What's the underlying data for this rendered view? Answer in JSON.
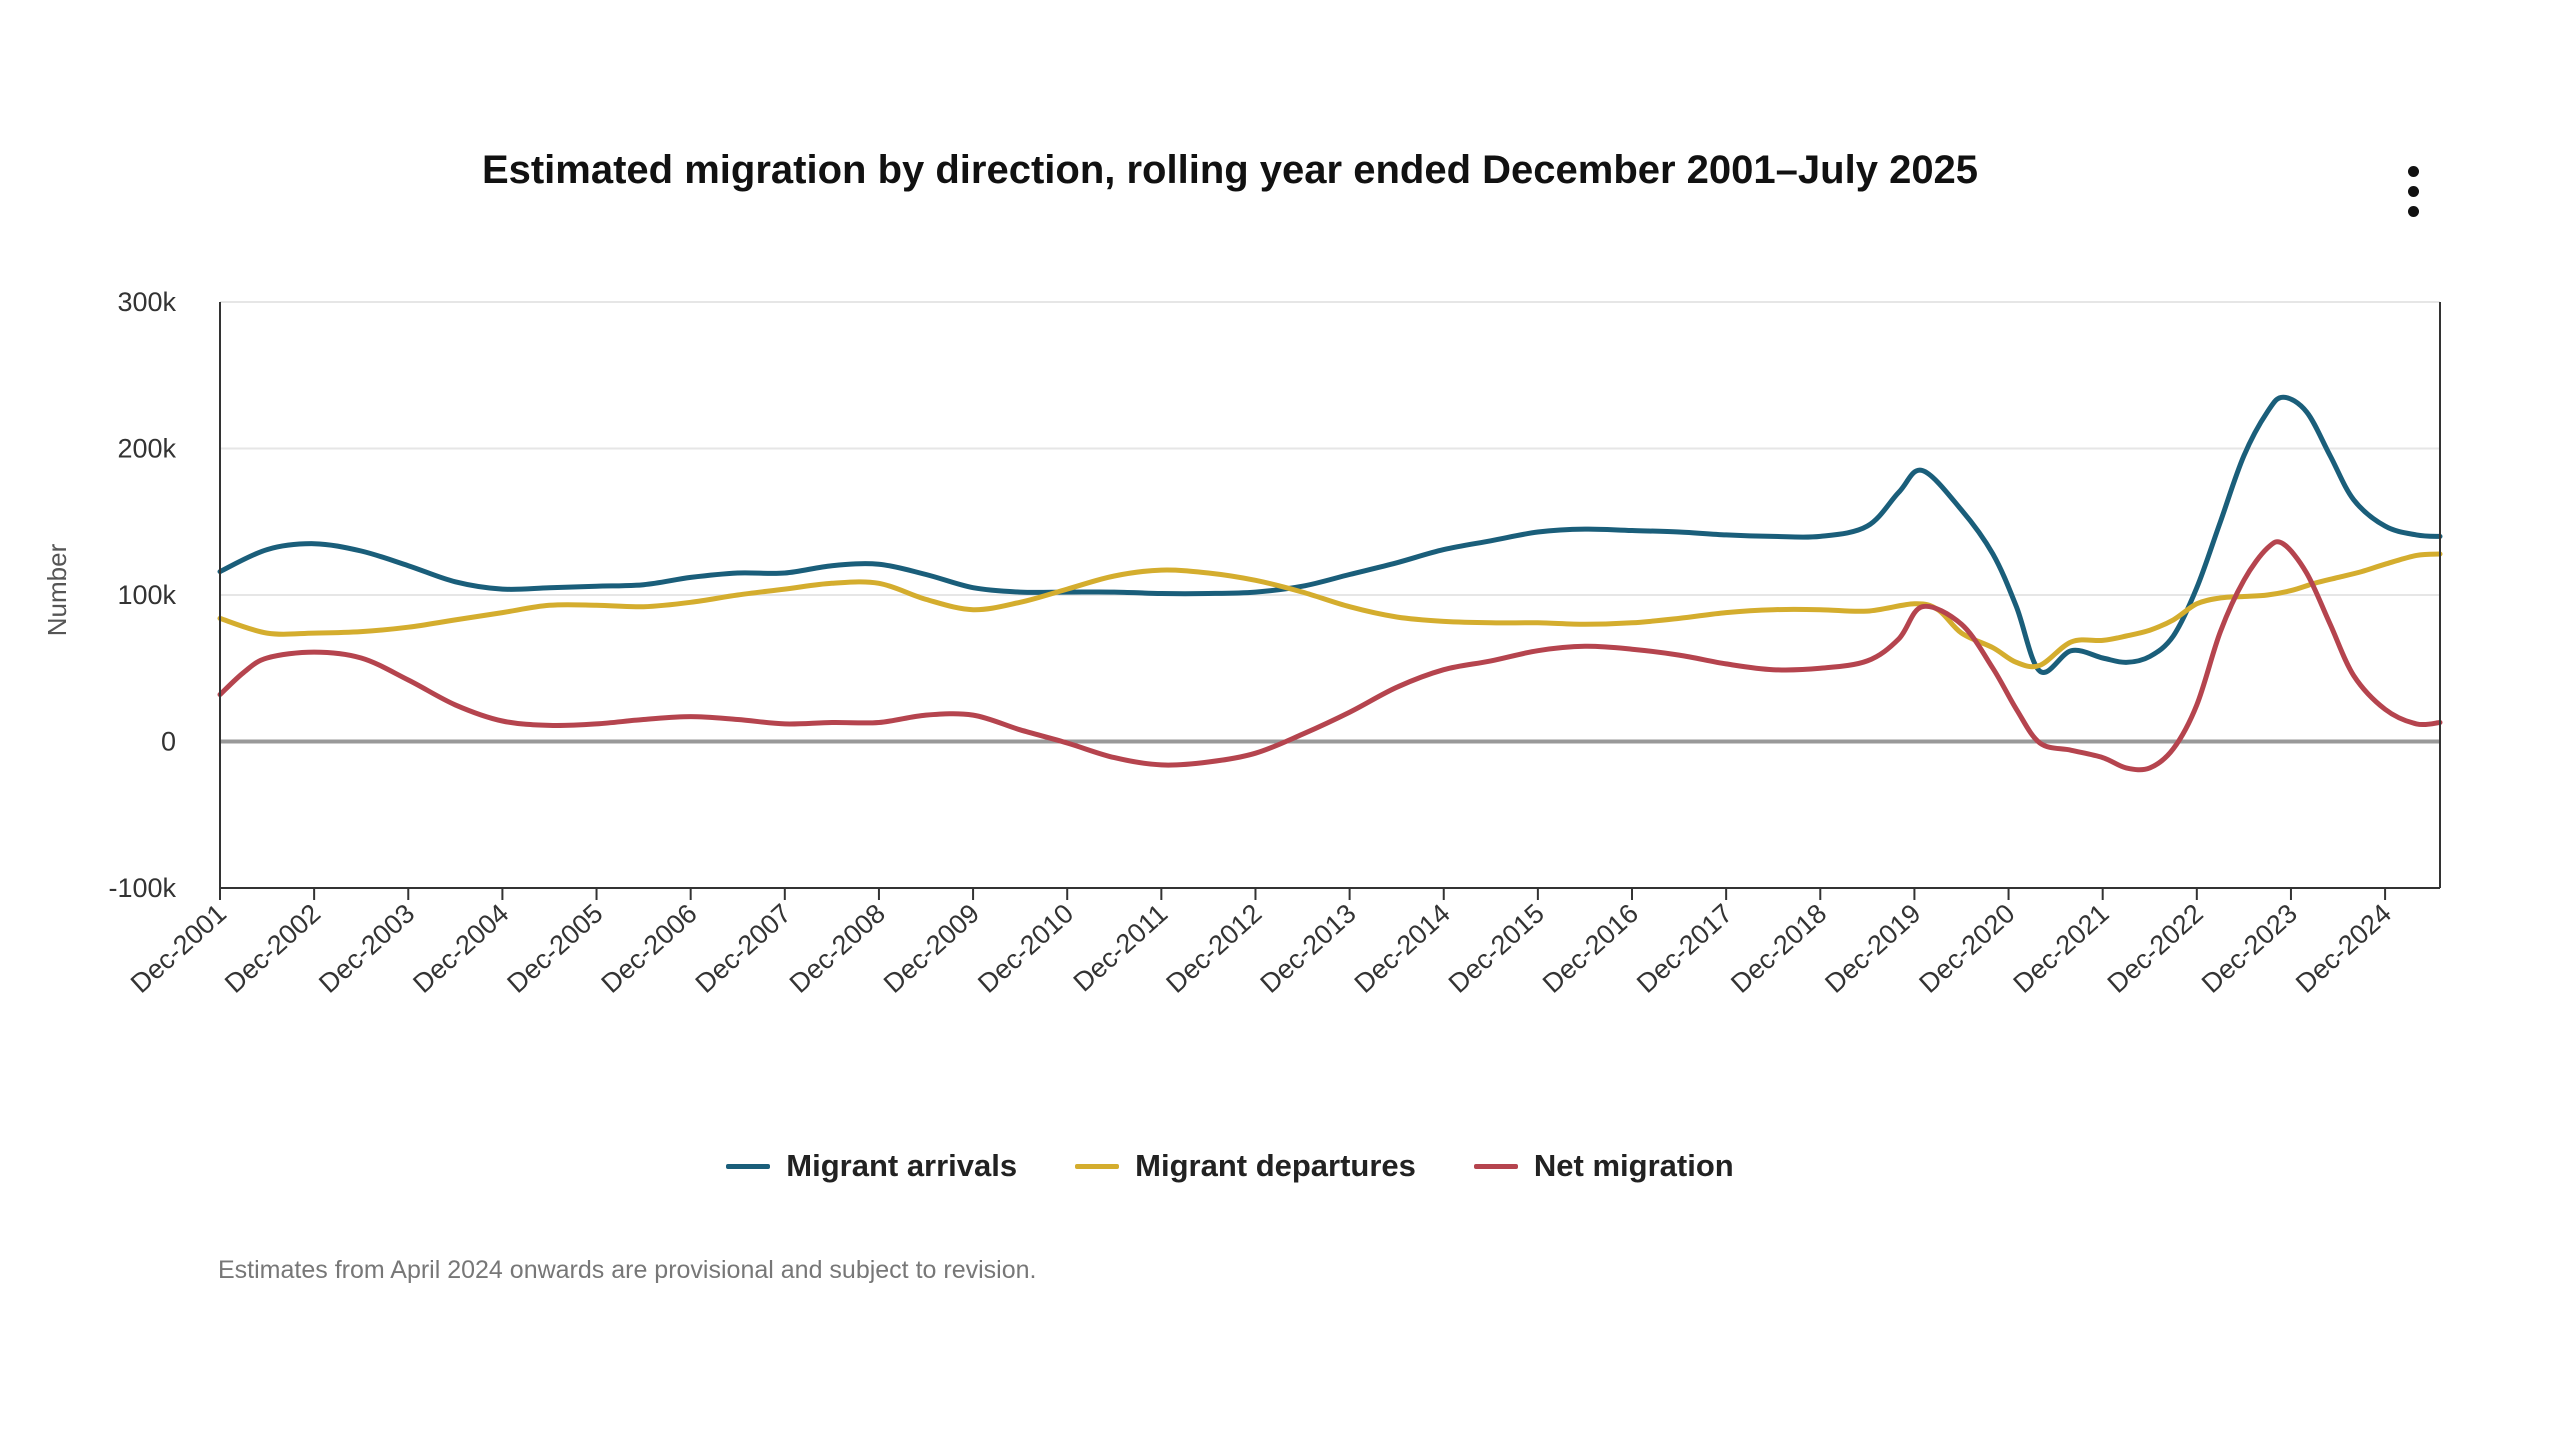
{
  "title": "Estimated migration by direction, rolling year ended December 2001–July 2025",
  "note": "Estimates from April 2024 onwards are provisional and subject to revision.",
  "menu": {
    "icon": "more-vertical-icon"
  },
  "colors": {
    "arrivals": "#1a5e7a",
    "departures": "#d4ad2e",
    "net": "#b5444e",
    "zero_line": "#999999",
    "grid": "#e6e6e6",
    "axis": "#333333"
  },
  "chart_data": {
    "type": "line",
    "title": "Estimated migration by direction, rolling year ended December 2001–July 2025",
    "xlabel": "",
    "ylabel": "Number",
    "ylim": [
      -100000,
      300000
    ],
    "y_ticks": [
      {
        "value": 300000,
        "label": "300k"
      },
      {
        "value": 200000,
        "label": "200k"
      },
      {
        "value": 100000,
        "label": "100k"
      },
      {
        "value": 0,
        "label": "0"
      },
      {
        "value": -100000,
        "label": "-100k"
      }
    ],
    "x_ticks": [
      "Dec-2001",
      "Dec-2002",
      "Dec-2003",
      "Dec-2004",
      "Dec-2005",
      "Dec-2006",
      "Dec-2007",
      "Dec-2008",
      "Dec-2009",
      "Dec-2010",
      "Dec-2011",
      "Dec-2012",
      "Dec-2013",
      "Dec-2014",
      "Dec-2015",
      "Dec-2016",
      "Dec-2017",
      "Dec-2018",
      "Dec-2019",
      "Dec-2020",
      "Dec-2021",
      "Dec-2022",
      "Dec-2023",
      "Dec-2024"
    ],
    "x_range": [
      "2001-12",
      "2025-07"
    ],
    "grid": true,
    "legend": "bottom",
    "series": [
      {
        "name": "Migrant arrivals",
        "points": [
          [
            "2001-12",
            116000
          ],
          [
            "2002-06",
            131000
          ],
          [
            "2002-12",
            135000
          ],
          [
            "2003-06",
            130000
          ],
          [
            "2003-12",
            120000
          ],
          [
            "2004-06",
            109000
          ],
          [
            "2004-12",
            104000
          ],
          [
            "2005-06",
            105000
          ],
          [
            "2005-12",
            106000
          ],
          [
            "2006-06",
            107000
          ],
          [
            "2006-12",
            112000
          ],
          [
            "2007-06",
            115000
          ],
          [
            "2007-12",
            115000
          ],
          [
            "2008-06",
            120000
          ],
          [
            "2008-12",
            121000
          ],
          [
            "2009-06",
            114000
          ],
          [
            "2009-12",
            105000
          ],
          [
            "2010-06",
            102000
          ],
          [
            "2010-12",
            102000
          ],
          [
            "2011-06",
            102000
          ],
          [
            "2011-12",
            101000
          ],
          [
            "2012-06",
            101000
          ],
          [
            "2012-12",
            102000
          ],
          [
            "2013-06",
            106000
          ],
          [
            "2013-12",
            114000
          ],
          [
            "2014-06",
            122000
          ],
          [
            "2014-12",
            131000
          ],
          [
            "2015-06",
            137000
          ],
          [
            "2015-12",
            143000
          ],
          [
            "2016-06",
            145000
          ],
          [
            "2016-12",
            144000
          ],
          [
            "2017-06",
            143000
          ],
          [
            "2017-12",
            141000
          ],
          [
            "2018-06",
            140000
          ],
          [
            "2018-12",
            140000
          ],
          [
            "2019-06",
            147000
          ],
          [
            "2019-10",
            170000
          ],
          [
            "2020-01",
            185000
          ],
          [
            "2020-06",
            158000
          ],
          [
            "2020-10",
            128000
          ],
          [
            "2021-01",
            92000
          ],
          [
            "2021-04",
            48000
          ],
          [
            "2021-08",
            62000
          ],
          [
            "2021-12",
            57000
          ],
          [
            "2022-03",
            54000
          ],
          [
            "2022-06",
            58000
          ],
          [
            "2022-09",
            72000
          ],
          [
            "2022-12",
            105000
          ],
          [
            "2023-03",
            150000
          ],
          [
            "2023-06",
            195000
          ],
          [
            "2023-09",
            225000
          ],
          [
            "2023-11",
            235000
          ],
          [
            "2024-02",
            225000
          ],
          [
            "2024-05",
            195000
          ],
          [
            "2024-08",
            165000
          ],
          [
            "2024-12",
            147000
          ],
          [
            "2025-04",
            141000
          ],
          [
            "2025-07",
            140000
          ]
        ]
      },
      {
        "name": "Migrant departures",
        "points": [
          [
            "2001-12",
            84000
          ],
          [
            "2002-06",
            74000
          ],
          [
            "2002-12",
            74000
          ],
          [
            "2003-06",
            75000
          ],
          [
            "2003-12",
            78000
          ],
          [
            "2004-06",
            83000
          ],
          [
            "2004-12",
            88000
          ],
          [
            "2005-06",
            93000
          ],
          [
            "2005-12",
            93000
          ],
          [
            "2006-06",
            92000
          ],
          [
            "2006-12",
            95000
          ],
          [
            "2007-06",
            100000
          ],
          [
            "2007-12",
            104000
          ],
          [
            "2008-06",
            108000
          ],
          [
            "2008-12",
            108000
          ],
          [
            "2009-06",
            97000
          ],
          [
            "2009-12",
            90000
          ],
          [
            "2010-06",
            95000
          ],
          [
            "2010-12",
            104000
          ],
          [
            "2011-06",
            113000
          ],
          [
            "2011-12",
            117000
          ],
          [
            "2012-06",
            115000
          ],
          [
            "2012-12",
            110000
          ],
          [
            "2013-06",
            102000
          ],
          [
            "2013-12",
            92000
          ],
          [
            "2014-06",
            85000
          ],
          [
            "2014-12",
            82000
          ],
          [
            "2015-06",
            81000
          ],
          [
            "2015-12",
            81000
          ],
          [
            "2016-06",
            80000
          ],
          [
            "2016-12",
            81000
          ],
          [
            "2017-06",
            84000
          ],
          [
            "2017-12",
            88000
          ],
          [
            "2018-06",
            90000
          ],
          [
            "2018-12",
            90000
          ],
          [
            "2019-06",
            89000
          ],
          [
            "2019-12",
            94000
          ],
          [
            "2020-03",
            90000
          ],
          [
            "2020-06",
            74000
          ],
          [
            "2020-10",
            64000
          ],
          [
            "2021-01",
            54000
          ],
          [
            "2021-04",
            52000
          ],
          [
            "2021-08",
            68000
          ],
          [
            "2021-12",
            69000
          ],
          [
            "2022-03",
            72000
          ],
          [
            "2022-06",
            76000
          ],
          [
            "2022-09",
            83000
          ],
          [
            "2022-12",
            94000
          ],
          [
            "2023-03",
            98000
          ],
          [
            "2023-06",
            99000
          ],
          [
            "2023-09",
            100000
          ],
          [
            "2023-12",
            103000
          ],
          [
            "2024-03",
            108000
          ],
          [
            "2024-06",
            112000
          ],
          [
            "2024-09",
            116000
          ],
          [
            "2024-12",
            121000
          ],
          [
            "2025-04",
            127000
          ],
          [
            "2025-07",
            128000
          ]
        ]
      },
      {
        "name": "Net migration",
        "points": [
          [
            "2001-12",
            32000
          ],
          [
            "2002-03",
            47000
          ],
          [
            "2002-06",
            57000
          ],
          [
            "2002-12",
            61000
          ],
          [
            "2003-06",
            57000
          ],
          [
            "2003-12",
            42000
          ],
          [
            "2004-06",
            25000
          ],
          [
            "2004-12",
            14000
          ],
          [
            "2005-06",
            11000
          ],
          [
            "2005-12",
            12000
          ],
          [
            "2006-06",
            15000
          ],
          [
            "2006-12",
            17000
          ],
          [
            "2007-06",
            15000
          ],
          [
            "2007-12",
            12000
          ],
          [
            "2008-06",
            13000
          ],
          [
            "2008-12",
            13000
          ],
          [
            "2009-06",
            18000
          ],
          [
            "2009-12",
            18000
          ],
          [
            "2010-06",
            8000
          ],
          [
            "2010-12",
            -1000
          ],
          [
            "2011-06",
            -11000
          ],
          [
            "2011-12",
            -16000
          ],
          [
            "2012-06",
            -14000
          ],
          [
            "2012-12",
            -8000
          ],
          [
            "2013-06",
            5000
          ],
          [
            "2013-12",
            20000
          ],
          [
            "2014-06",
            37000
          ],
          [
            "2014-12",
            49000
          ],
          [
            "2015-06",
            55000
          ],
          [
            "2015-12",
            62000
          ],
          [
            "2016-06",
            65000
          ],
          [
            "2016-12",
            63000
          ],
          [
            "2017-06",
            59000
          ],
          [
            "2017-12",
            53000
          ],
          [
            "2018-06",
            49000
          ],
          [
            "2018-12",
            50000
          ],
          [
            "2019-06",
            55000
          ],
          [
            "2019-10",
            70000
          ],
          [
            "2020-01",
            92000
          ],
          [
            "2020-06",
            80000
          ],
          [
            "2020-10",
            50000
          ],
          [
            "2021-01",
            22000
          ],
          [
            "2021-04",
            -1000
          ],
          [
            "2021-08",
            -6000
          ],
          [
            "2021-12",
            -11000
          ],
          [
            "2022-03",
            -18000
          ],
          [
            "2022-06",
            -18000
          ],
          [
            "2022-09",
            -5000
          ],
          [
            "2022-12",
            25000
          ],
          [
            "2023-03",
            75000
          ],
          [
            "2023-06",
            110000
          ],
          [
            "2023-09",
            132000
          ],
          [
            "2023-11",
            135000
          ],
          [
            "2024-02",
            115000
          ],
          [
            "2024-05",
            80000
          ],
          [
            "2024-08",
            45000
          ],
          [
            "2024-12",
            22000
          ],
          [
            "2025-04",
            12000
          ],
          [
            "2025-07",
            13000
          ]
        ]
      }
    ]
  }
}
